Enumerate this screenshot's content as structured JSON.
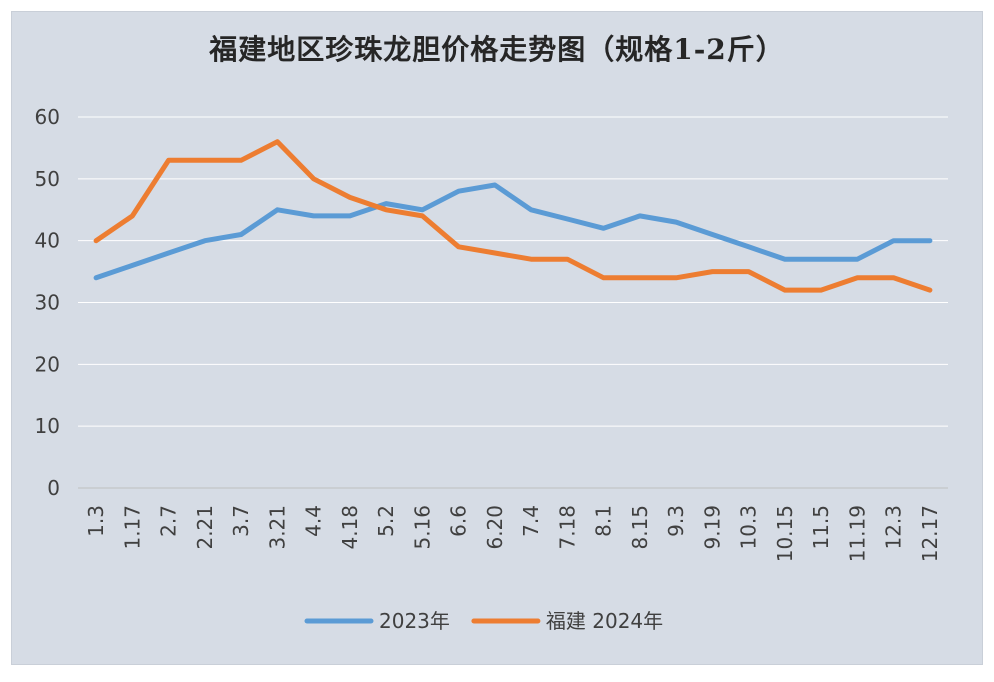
{
  "chart_data": {
    "type": "line",
    "title": "福建地区珍珠龙胆价格走势图（规格1-2斤）",
    "categories": [
      "1.3",
      "1.17",
      "2.7",
      "2.21",
      "3.7",
      "3.21",
      "4.4",
      "4.18",
      "5.2",
      "5.16",
      "6.6",
      "6.20",
      "7.4",
      "7.18",
      "8.1",
      "8.15",
      "9.3",
      "9.19",
      "10.3",
      "10.15",
      "11.5",
      "11.19",
      "12.3",
      "12.17"
    ],
    "ylim": [
      0,
      60
    ],
    "yticks": [
      0,
      10,
      20,
      30,
      40,
      50,
      60
    ],
    "grid": true,
    "legend_position": "bottom",
    "series": [
      {
        "name": "2023年",
        "color": "#5b9bd5",
        "values": [
          34,
          36,
          38,
          40,
          41,
          45,
          44,
          44,
          46,
          45,
          48,
          49,
          45,
          43.5,
          42,
          44,
          43,
          41,
          39,
          37,
          37,
          37,
          40,
          40
        ]
      },
      {
        "name": "福建 2024年",
        "color": "#ed7d31",
        "values": [
          40,
          44,
          53,
          53,
          53,
          56,
          50,
          47,
          45,
          44,
          39,
          38,
          37,
          37,
          34,
          34,
          34,
          35,
          35,
          32,
          32,
          34,
          34,
          32
        ]
      }
    ]
  }
}
